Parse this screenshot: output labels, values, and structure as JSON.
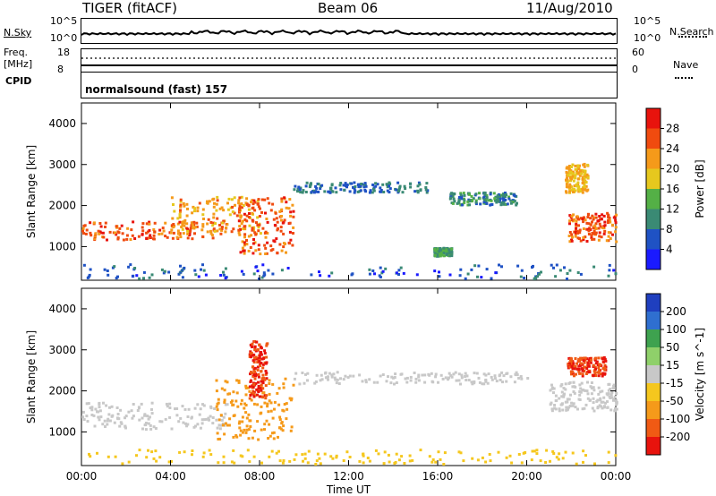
{
  "header": {
    "radar": "TIGER (fitACF)",
    "beam": "Beam 06",
    "date": "11/Aug/2010"
  },
  "noise_panel": {
    "left_label": "N.Sky",
    "right_label": "N.Search",
    "left_ticks": [
      "10^5",
      "10^0"
    ],
    "right_ticks": [
      "10^5",
      "10^0"
    ]
  },
  "freq_panel": {
    "left_label_line1": "Freq.",
    "left_label_line2": "[MHz]",
    "right_label": "Nave",
    "left_ticks": [
      "18",
      "8"
    ],
    "right_ticks": [
      "60",
      "0"
    ]
  },
  "cpid_panel": {
    "label": "CPID",
    "text": "normalsound (fast) 157"
  },
  "x_axis": {
    "title": "Time UT",
    "ticks": [
      "00:00",
      "04:00",
      "08:00",
      "12:00",
      "16:00",
      "20:00",
      "00:00"
    ]
  },
  "chart_data": [
    {
      "type": "heatmap",
      "title": "",
      "xlabel": "Time UT",
      "ylabel": "Slant Range [km]",
      "x_ticks": [
        "00:00",
        "04:00",
        "08:00",
        "12:00",
        "16:00",
        "20:00",
        "00:00"
      ],
      "x_hours": [
        0,
        4,
        8,
        12,
        16,
        20,
        24
      ],
      "ylim": [
        180,
        4500
      ],
      "y_ticks": [
        1000,
        2000,
        3000,
        4000
      ],
      "colorbar": {
        "label": "Power [dB]",
        "ticks": [
          "4",
          "8",
          "12",
          "16",
          "20",
          "24",
          "28"
        ],
        "colors": [
          "#1a1aff",
          "#1f52c4",
          "#3a8a74",
          "#54b046",
          "#e6c81e",
          "#f59a1a",
          "#f04b0f",
          "#e8130d"
        ]
      },
      "regions": [
        {
          "t0": 0.0,
          "t1": 6.5,
          "r0": 1150,
          "r1": 1600,
          "value": 26
        },
        {
          "t0": 4.0,
          "t1": 8.0,
          "r0": 1300,
          "r1": 2200,
          "value": 22
        },
        {
          "t0": 7.0,
          "t1": 9.5,
          "r0": 800,
          "r1": 2200,
          "value": 26
        },
        {
          "t0": 9.5,
          "t1": 15.5,
          "r0": 2300,
          "r1": 2550,
          "value": 8
        },
        {
          "t0": 16.5,
          "t1": 19.5,
          "r0": 2000,
          "r1": 2300,
          "value": 10
        },
        {
          "t0": 15.8,
          "t1": 16.6,
          "r0": 750,
          "r1": 950,
          "value": 12
        },
        {
          "t0": 21.8,
          "t1": 24.0,
          "r0": 1100,
          "r1": 1800,
          "value": 26
        },
        {
          "t0": 21.7,
          "t1": 22.7,
          "r0": 2300,
          "r1": 3000,
          "value": 20
        },
        {
          "t0": 0.0,
          "t1": 24.0,
          "r0": 200,
          "r1": 550,
          "value": 6
        }
      ]
    },
    {
      "type": "heatmap",
      "title": "",
      "xlabel": "Time UT",
      "ylabel": "Slant Range [km]",
      "x_ticks": [
        "00:00",
        "04:00",
        "08:00",
        "12:00",
        "16:00",
        "20:00",
        "00:00"
      ],
      "x_hours": [
        0,
        4,
        8,
        12,
        16,
        20,
        24
      ],
      "ylim": [
        180,
        4500
      ],
      "y_ticks": [
        1000,
        2000,
        3000,
        4000
      ],
      "colorbar": {
        "label": "Velocity [m s^-1]",
        "ticks": [
          "200",
          "100",
          "50",
          "15",
          "-15",
          "-50",
          "-100",
          "-200"
        ],
        "colors": [
          "#1f3fbf",
          "#2f6fd0",
          "#3ea24f",
          "#8fd06a",
          "#c8c8c8",
          "#f5c71e",
          "#f59a1a",
          "#f05a14",
          "#e8130d"
        ]
      },
      "regions": [
        {
          "t0": 0.0,
          "t1": 6.5,
          "r0": 1050,
          "r1": 1700,
          "value": 0
        },
        {
          "t0": 6.0,
          "t1": 9.5,
          "r0": 800,
          "r1": 2300,
          "value": -60
        },
        {
          "t0": 7.5,
          "t1": 8.3,
          "r0": 1800,
          "r1": 3200,
          "value": -200
        },
        {
          "t0": 9.5,
          "t1": 20.0,
          "r0": 2150,
          "r1": 2450,
          "value": 0
        },
        {
          "t0": 21.8,
          "t1": 23.5,
          "r0": 2350,
          "r1": 2800,
          "value": -200
        },
        {
          "t0": 21.0,
          "t1": 24.0,
          "r0": 1500,
          "r1": 2200,
          "value": 0
        },
        {
          "t0": 0.0,
          "t1": 24.0,
          "r0": 200,
          "r1": 550,
          "value": -30
        }
      ]
    }
  ]
}
